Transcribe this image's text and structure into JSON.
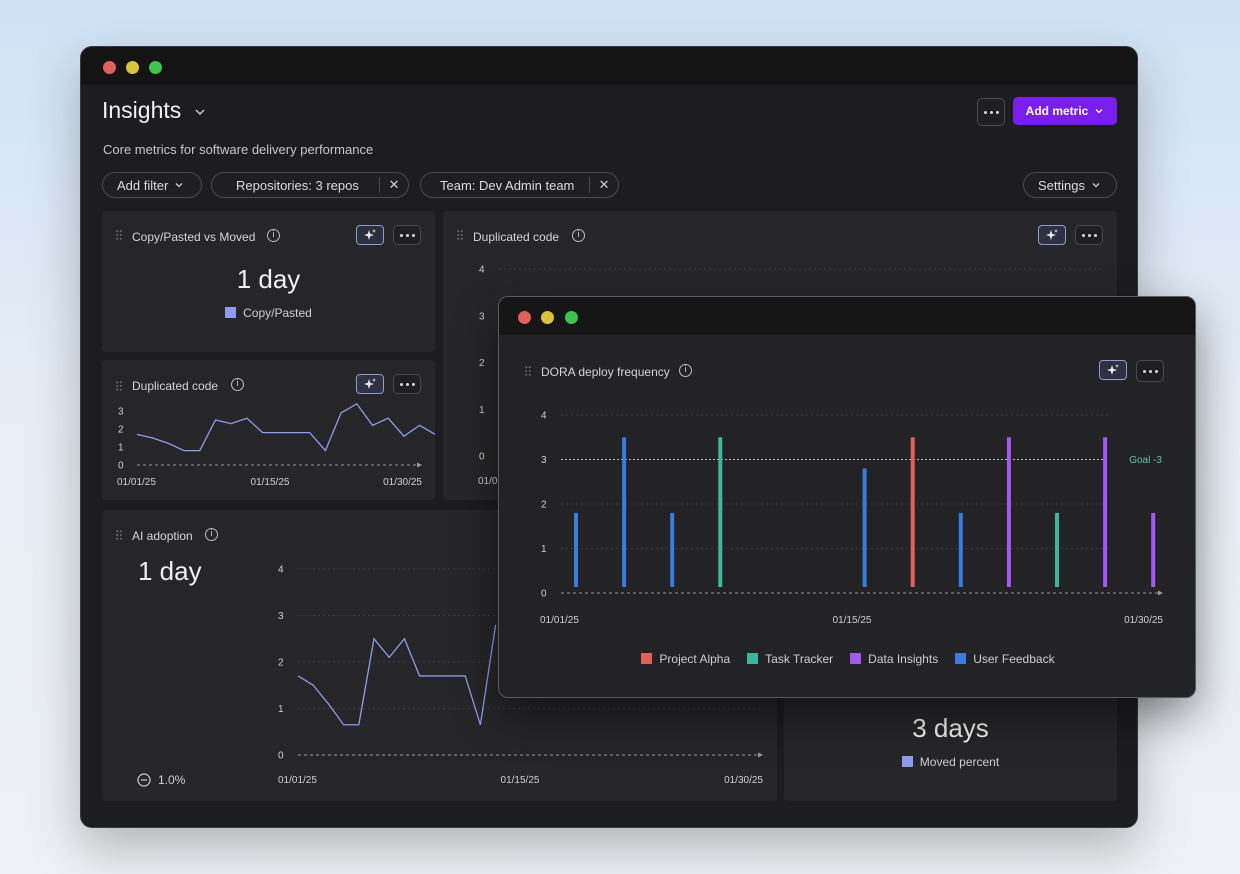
{
  "app": {
    "title": "Insights",
    "subtitle": "Core metrics for software delivery performance"
  },
  "toolbar": {
    "add_metric_label": "Add metric"
  },
  "filters": {
    "add_filter_label": "Add filter",
    "repositories_label": "Repositories: 3 repos",
    "team_label": "Team: Dev Admin team",
    "settings_label": "Settings",
    "remove_glyph": "✕"
  },
  "cards": {
    "copy_moved": {
      "title": "Copy/Pasted vs Moved",
      "value": "1 day",
      "legend": "Copy/Pasted",
      "legend_color": "#8e9cf0"
    },
    "dup_small": {
      "title": "Duplicated code",
      "x_labels": [
        "01/01/25",
        "01/15/25",
        "01/30/25"
      ],
      "y_labels": [
        "0",
        "1",
        "2",
        "3"
      ]
    },
    "dup_large": {
      "title": "Duplicated code",
      "y_labels": [
        "0",
        "1",
        "2",
        "3",
        "4"
      ],
      "x_first_partial": "01/0"
    },
    "ai_adoption": {
      "title": "AI adoption",
      "value": "1 day",
      "delta": "1.0%",
      "x_labels": [
        "01/01/25",
        "01/15/25",
        "01/30/25"
      ],
      "y_labels": [
        "0",
        "1",
        "2",
        "3",
        "4"
      ]
    },
    "moved": {
      "value": "3 days",
      "legend": "Moved percent",
      "legend_color": "#8e9cf0"
    }
  },
  "popup": {
    "title": "DORA deploy frequency",
    "goal_label": "Goal -3",
    "x_labels": [
      "01/01/25",
      "01/15/25",
      "01/30/25"
    ],
    "y_labels": [
      "0",
      "1",
      "2",
      "3",
      "4"
    ],
    "legend": [
      {
        "name": "Project Alpha",
        "color": "#e0605a"
      },
      {
        "name": "Task Tracker",
        "color": "#3fb59a"
      },
      {
        "name": "Data Insights",
        "color": "#a259f0"
      },
      {
        "name": "User Feedback",
        "color": "#3a7be0"
      }
    ]
  },
  "chart_data": [
    {
      "type": "line",
      "title": "Duplicated code",
      "x_ticks": [
        "01/01/25",
        "01/15/25",
        "01/30/25"
      ],
      "ylim": [
        0,
        3
      ],
      "grid": false,
      "series": [
        {
          "values": [
            1.7,
            1.5,
            1.2,
            0.8,
            0.8,
            2.5,
            2.3,
            2.6,
            1.8,
            1.8,
            1.8,
            1.8,
            0.8,
            2.9,
            3.4,
            2.2,
            2.6,
            1.6,
            2.2,
            1.7,
            1.7
          ]
        }
      ]
    },
    {
      "type": "line",
      "title": "AI adoption",
      "x_ticks": [
        "01/01/25",
        "01/15/25",
        "01/30/25"
      ],
      "ylim": [
        0,
        4
      ],
      "grid": true,
      "series": [
        {
          "values": [
            1.7,
            1.5,
            1.1,
            0.65,
            0.65,
            2.5,
            2.1,
            2.5,
            1.7,
            1.7,
            1.7,
            1.7,
            0.65,
            2.8
          ]
        }
      ]
    },
    {
      "type": "bar",
      "title": "DORA deploy frequency",
      "x_ticks": [
        "01/01/25",
        "01/15/25",
        "01/30/25"
      ],
      "ylim": [
        0,
        4
      ],
      "goal": 3,
      "grid": true,
      "bars": [
        {
          "slot": 0,
          "value": 1.8,
          "series": "User Feedback"
        },
        {
          "slot": 1,
          "value": 3.5,
          "series": "User Feedback"
        },
        {
          "slot": 2,
          "value": 1.8,
          "series": "User Feedback"
        },
        {
          "slot": 3,
          "value": 3.5,
          "series": "Task Tracker"
        },
        {
          "slot": 6,
          "value": 2.8,
          "series": "User Feedback"
        },
        {
          "slot": 7,
          "value": 3.5,
          "series": "Project Alpha"
        },
        {
          "slot": 8,
          "value": 1.8,
          "series": "User Feedback"
        },
        {
          "slot": 9,
          "value": 3.5,
          "series": "Data Insights"
        },
        {
          "slot": 10,
          "value": 1.8,
          "series": "Task Tracker"
        },
        {
          "slot": 11,
          "value": 3.5,
          "series": "Data Insights"
        },
        {
          "slot": 12,
          "value": 1.8,
          "series": "Data Insights"
        }
      ]
    }
  ]
}
